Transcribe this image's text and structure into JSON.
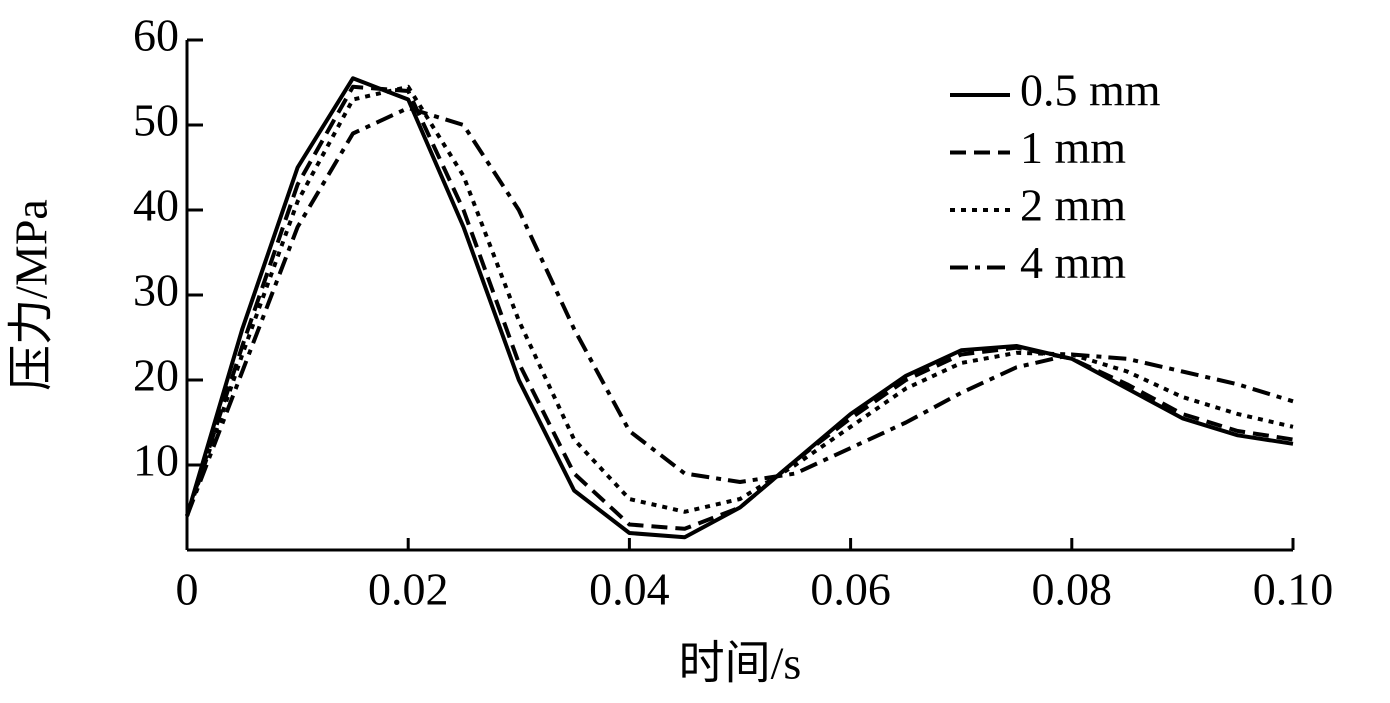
{
  "chart_data": {
    "type": "line",
    "x_label": "时间/s",
    "y_label": "压力/MPa",
    "x": [
      0,
      0.005,
      0.01,
      0.015,
      0.02,
      0.025,
      0.03,
      0.035,
      0.04,
      0.045,
      0.05,
      0.055,
      0.06,
      0.065,
      0.07,
      0.075,
      0.08,
      0.085,
      0.09,
      0.095,
      0.1
    ],
    "series": [
      {
        "name": "0.5 mm",
        "color": "#000000",
        "line_style": "solid",
        "values": [
          4,
          26,
          45,
          55.5,
          53,
          38,
          20,
          7,
          2,
          1.5,
          5,
          10.5,
          16,
          20.5,
          23.5,
          24,
          22.5,
          19,
          15.5,
          13.5,
          12.5
        ]
      },
      {
        "name": "1 mm",
        "color": "#000000",
        "line_style": "dashed",
        "values": [
          4,
          24,
          43,
          54.5,
          54,
          40,
          22,
          9,
          3,
          2.5,
          5,
          10.5,
          15.5,
          20,
          23,
          23.8,
          22.5,
          19.5,
          16,
          14,
          13
        ]
      },
      {
        "name": "2 mm",
        "color": "#000000",
        "line_style": "dotted",
        "values": [
          4,
          23,
          41,
          53,
          54.5,
          44,
          27,
          13,
          6,
          4.5,
          6,
          10,
          14.5,
          19,
          22,
          23.2,
          23,
          21,
          18,
          16,
          14.5
        ]
      },
      {
        "name": "4 mm",
        "color": "#000000",
        "line_style": "dashdot",
        "values": [
          4,
          21,
          38,
          49,
          52,
          50,
          40,
          26,
          14,
          9,
          8,
          9,
          12,
          15,
          18.5,
          21.5,
          23,
          22.5,
          21,
          19.5,
          17.5
        ]
      }
    ],
    "xlim": [
      0,
      0.1
    ],
    "xticks": [
      0,
      0.02,
      0.04,
      0.06,
      0.08,
      {
        "value": 0.1,
        "label": "0.10"
      }
    ],
    "ylim": [
      0,
      60
    ],
    "yticks": [
      10,
      20,
      30,
      40,
      50,
      60
    ],
    "legend": "upper right",
    "grid": false
  }
}
